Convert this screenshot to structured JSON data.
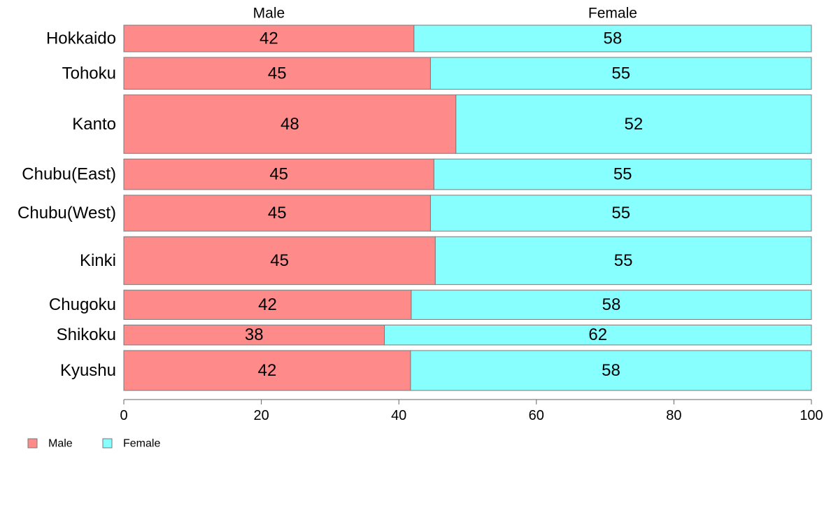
{
  "chart_data": {
    "type": "bar",
    "orientation": "horizontal",
    "stacked": true,
    "categories": [
      "Hokkaido",
      "Tohoku",
      "Kanto",
      "Chubu(East)",
      "Chubu(West)",
      "Kinki",
      "Chugoku",
      "Shikoku",
      "Kyushu"
    ],
    "series": [
      {
        "name": "Male",
        "color": "#ff8a8a",
        "values": [
          42,
          45,
          48,
          45,
          45,
          45,
          42,
          38,
          42
        ],
        "exact": [
          42.2,
          44.6,
          48.3,
          45.1,
          44.6,
          45.3,
          41.8,
          37.9,
          41.7
        ]
      },
      {
        "name": "Female",
        "color": "#88ffff",
        "values": [
          58,
          55,
          52,
          55,
          55,
          55,
          58,
          62,
          58
        ]
      }
    ],
    "bar_weights": [
      1,
      1.2,
      2.2,
      1.15,
      1.35,
      1.8,
      1.1,
      0.75,
      1.5
    ],
    "column_headers": [
      "Male",
      "Female"
    ],
    "xlim": [
      0,
      100
    ],
    "xticks": [
      0,
      20,
      40,
      60,
      80,
      100
    ],
    "grid": false,
    "legend_position": "bottom-left",
    "legend": [
      "Male",
      "Female"
    ]
  }
}
